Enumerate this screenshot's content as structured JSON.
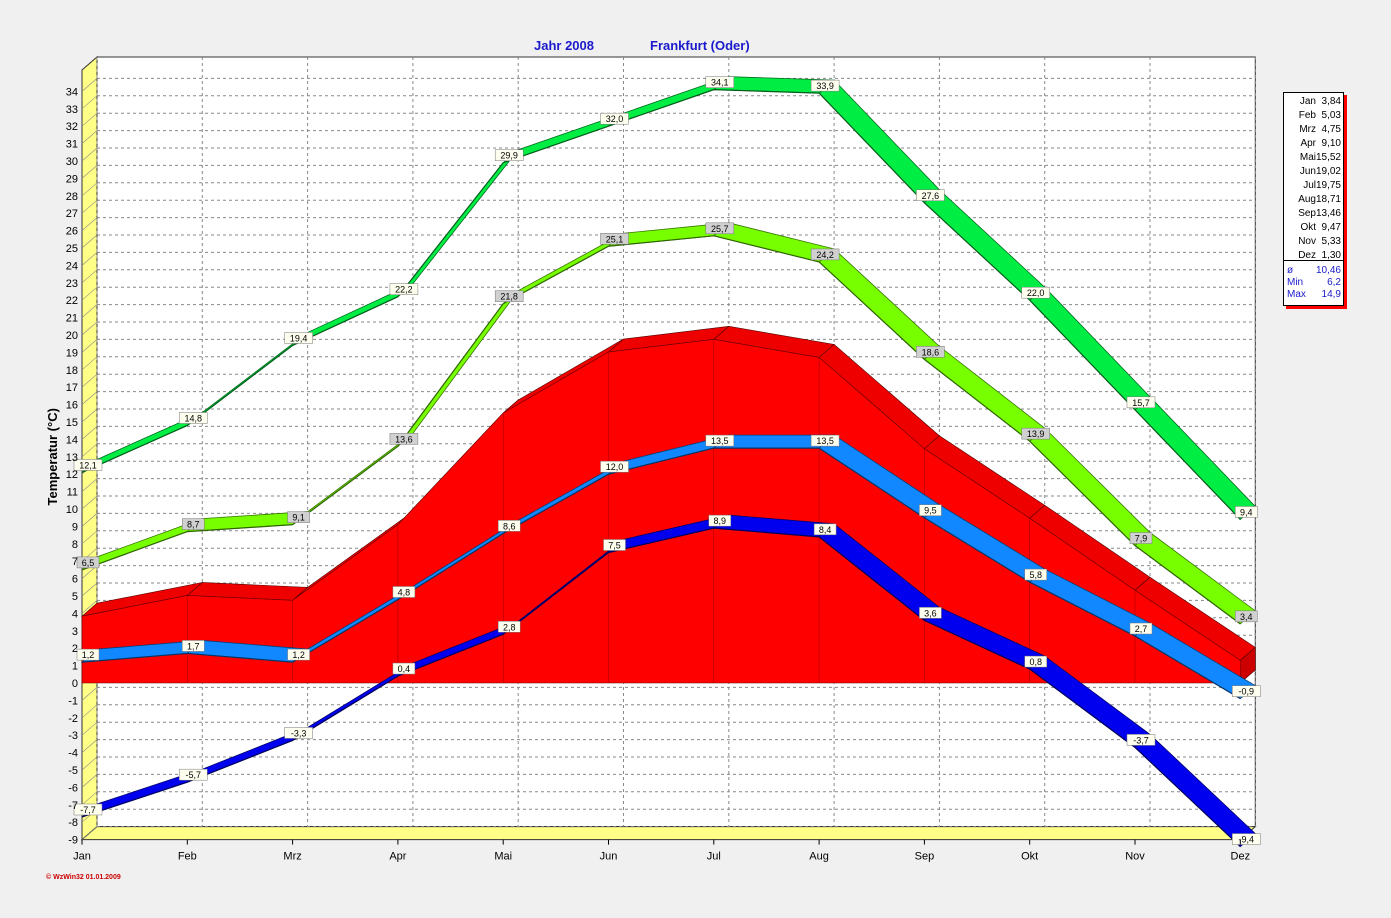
{
  "chart_title": {
    "year": "Jahr  2008",
    "station": "Frankfurt (Oder)"
  },
  "chart_data": {
    "type": "area",
    "ylabel": "Temperatur  (°C)",
    "xlabel": "",
    "categories": [
      "Jan",
      "Feb",
      "Mrz",
      "Apr",
      "Mai",
      "Jun",
      "Jul",
      "Aug",
      "Sep",
      "Okt",
      "Nov",
      "Dez"
    ],
    "ylim": [
      -9,
      35
    ],
    "yticks": [
      -9,
      -8,
      -7,
      -6,
      -5,
      -4,
      -3,
      -2,
      -1,
      0,
      1,
      2,
      3,
      4,
      5,
      6,
      7,
      8,
      9,
      10,
      11,
      12,
      13,
      14,
      15,
      16,
      17,
      18,
      19,
      20,
      21,
      22,
      23,
      24,
      25,
      26,
      27,
      28,
      29,
      30,
      31,
      32,
      33,
      34
    ],
    "grid": true,
    "series": [
      {
        "key": "abs_max",
        "color": "#00ee44",
        "style": "ribbon",
        "values": [
          12.1,
          14.8,
          19.4,
          22.2,
          29.9,
          32.0,
          34.1,
          33.9,
          27.6,
          22.0,
          15.7,
          9.4
        ],
        "labels": [
          "12,1",
          "14,8",
          "19,4",
          "22,2",
          "29,9",
          "32,0",
          "34,1",
          "33,9",
          "27,6",
          "22,0",
          "15,7",
          "9,4"
        ]
      },
      {
        "key": "mean_max",
        "color": "#77ff00",
        "style": "ribbon",
        "values": [
          6.5,
          8.7,
          9.1,
          13.6,
          21.8,
          25.1,
          25.7,
          24.2,
          18.6,
          13.9,
          7.9,
          3.4
        ],
        "labels": [
          "6,5",
          "8,7",
          "9,1",
          "13,6",
          "21,8",
          "25,1",
          "25,7",
          "24,2",
          "18,6",
          "13,9",
          "7,9",
          "3,4"
        ]
      },
      {
        "key": "mean",
        "color": "#ff0000",
        "style": "area",
        "values": [
          3.84,
          5.03,
          4.75,
          9.1,
          15.52,
          19.02,
          19.75,
          18.71,
          13.46,
          9.47,
          5.33,
          1.3
        ]
      },
      {
        "key": "mean_min",
        "color": "#1188ff",
        "style": "ribbon",
        "values": [
          1.2,
          1.7,
          1.2,
          4.8,
          8.6,
          12.0,
          13.5,
          13.5,
          9.5,
          5.8,
          2.7,
          -0.9
        ],
        "labels": [
          "1,2",
          "1,7",
          "1,2",
          "4,8",
          "8,6",
          "12,0",
          "13,5",
          "13,5",
          "9,5",
          "5,8",
          "2,7",
          "-0,9"
        ]
      },
      {
        "key": "abs_min",
        "color": "#0000ee",
        "style": "ribbon",
        "values": [
          -7.7,
          -5.7,
          -3.3,
          0.4,
          2.8,
          7.5,
          8.9,
          8.4,
          3.6,
          0.8,
          -3.7,
          -9.4
        ],
        "labels": [
          "-7,7",
          "-5,7",
          "-3,3",
          "0,4",
          "2,8",
          "7,5",
          "8,9",
          "8,4",
          "3,6",
          "0,8",
          "-3,7",
          "-9,4"
        ]
      }
    ]
  },
  "legend": {
    "months": [
      {
        "m": "Jan",
        "v": "3,84"
      },
      {
        "m": "Feb",
        "v": "5,03"
      },
      {
        "m": "Mrz",
        "v": "4,75"
      },
      {
        "m": "Apr",
        "v": "9,10"
      },
      {
        "m": "Mai",
        "v": "15,52"
      },
      {
        "m": "Jun",
        "v": "19,02"
      },
      {
        "m": "Jul",
        "v": "19,75"
      },
      {
        "m": "Aug",
        "v": "18,71"
      },
      {
        "m": "Sep",
        "v": "13,46"
      },
      {
        "m": "Okt",
        "v": "9,47"
      },
      {
        "m": "Nov",
        "v": "5,33"
      },
      {
        "m": "Dez",
        "v": "1,30"
      }
    ],
    "stats": [
      {
        "k": "ø",
        "v": "10,46"
      },
      {
        "k": "Min",
        "v": "6,2"
      },
      {
        "k": "Max",
        "v": "14,9"
      }
    ]
  },
  "footer": "© WzWin32  01.01.2009"
}
